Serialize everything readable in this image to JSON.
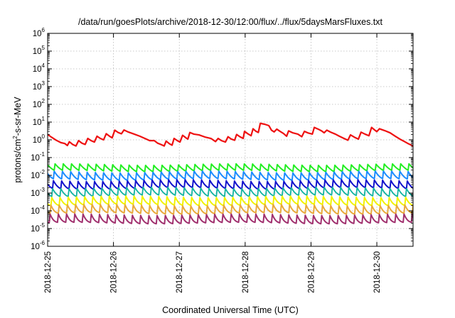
{
  "chart_data": {
    "type": "line",
    "title": "/data/run/goesPlots/archive/2018-12-30/12:00/flux/../flux/5daysMarsFluxes.txt",
    "xlabel": "Coordinated Universal Time (UTC)",
    "ylabel": {
      "base": "protons/cm",
      "sup": "2",
      "rest": "-s-sr-MeV"
    },
    "y_scale": "log",
    "ylim": [
      1e-06,
      1000000.0
    ],
    "xlim": [
      0,
      5.55
    ],
    "grid": true,
    "legend": "none",
    "x_ticks": [
      {
        "x": 0,
        "label": "2018-12-25"
      },
      {
        "x": 1,
        "label": "2018-12-26"
      },
      {
        "x": 2,
        "label": "2018-12-27"
      },
      {
        "x": 3,
        "label": "2018-12-28"
      },
      {
        "x": 4,
        "label": "2018-12-29"
      },
      {
        "x": 5,
        "label": "2018-12-30"
      }
    ],
    "y_ticks": [
      {
        "v": -6,
        "base": "10",
        "exp": "-6"
      },
      {
        "v": -5,
        "base": "10",
        "exp": "-5"
      },
      {
        "v": -4,
        "base": "10",
        "exp": "-4"
      },
      {
        "v": -3,
        "base": "10",
        "exp": "-3"
      },
      {
        "v": -2,
        "base": "10",
        "exp": "-2"
      },
      {
        "v": -1,
        "base": "10",
        "exp": "-1"
      },
      {
        "v": 0,
        "base": "10",
        "exp": "0"
      },
      {
        "v": 1,
        "base": "10",
        "exp": "1"
      },
      {
        "v": 2,
        "base": "10",
        "exp": "2"
      },
      {
        "v": 3,
        "base": "10",
        "exp": "3"
      },
      {
        "v": 4,
        "base": "10",
        "exp": "4"
      },
      {
        "v": 5,
        "base": "10",
        "exp": "5"
      },
      {
        "v": 6,
        "base": "10",
        "exp": "6"
      }
    ],
    "series": [
      {
        "color": "#ee1111",
        "width": 2.2,
        "values": [
          [
            0.0,
            2.0
          ],
          [
            0.06,
            1.4
          ],
          [
            0.13,
            0.95
          ],
          [
            0.2,
            0.7
          ],
          [
            0.26,
            0.62
          ],
          [
            0.3,
            0.48
          ],
          [
            0.33,
            0.78
          ],
          [
            0.38,
            0.55
          ],
          [
            0.43,
            0.45
          ],
          [
            0.47,
            0.9
          ],
          [
            0.52,
            0.65
          ],
          [
            0.57,
            0.55
          ],
          [
            0.61,
            1.2
          ],
          [
            0.66,
            0.9
          ],
          [
            0.71,
            0.75
          ],
          [
            0.75,
            1.6
          ],
          [
            0.8,
            1.2
          ],
          [
            0.85,
            1.0
          ],
          [
            0.89,
            2.2
          ],
          [
            0.94,
            1.6
          ],
          [
            0.98,
            1.3
          ],
          [
            1.02,
            3.5
          ],
          [
            1.07,
            2.6
          ],
          [
            1.12,
            2.2
          ],
          [
            1.16,
            3.6
          ],
          [
            1.22,
            2.8
          ],
          [
            1.3,
            2.2
          ],
          [
            1.4,
            1.6
          ],
          [
            1.5,
            1.1
          ],
          [
            1.55,
            0.9
          ],
          [
            1.62,
            0.9
          ],
          [
            1.67,
            0.65
          ],
          [
            1.72,
            0.55
          ],
          [
            1.77,
            0.45
          ],
          [
            1.8,
            0.85
          ],
          [
            1.85,
            0.6
          ],
          [
            1.89,
            0.5
          ],
          [
            1.92,
            1.2
          ],
          [
            1.97,
            0.9
          ],
          [
            2.01,
            0.75
          ],
          [
            2.05,
            1.8
          ],
          [
            2.1,
            1.3
          ],
          [
            2.13,
            1.1
          ],
          [
            2.16,
            2.6
          ],
          [
            2.22,
            2.1
          ],
          [
            2.3,
            1.9
          ],
          [
            2.4,
            1.4
          ],
          [
            2.48,
            1.2
          ],
          [
            2.55,
            0.8
          ],
          [
            2.59,
            1.2
          ],
          [
            2.64,
            0.9
          ],
          [
            2.7,
            0.75
          ],
          [
            2.74,
            1.5
          ],
          [
            2.79,
            1.1
          ],
          [
            2.84,
            0.95
          ],
          [
            2.87,
            2.0
          ],
          [
            2.92,
            1.5
          ],
          [
            2.97,
            1.2
          ],
          [
            2.99,
            3.0
          ],
          [
            3.04,
            2.2
          ],
          [
            3.09,
            1.7
          ],
          [
            3.12,
            4.2
          ],
          [
            3.16,
            3.1
          ],
          [
            3.2,
            2.6
          ],
          [
            3.23,
            8.5
          ],
          [
            3.3,
            7.5
          ],
          [
            3.36,
            6.3
          ],
          [
            3.4,
            3.5
          ],
          [
            3.44,
            2.8
          ],
          [
            3.48,
            4.0
          ],
          [
            3.53,
            3.0
          ],
          [
            3.58,
            2.3
          ],
          [
            3.63,
            1.6
          ],
          [
            3.66,
            3.2
          ],
          [
            3.72,
            2.5
          ],
          [
            3.8,
            2.1
          ],
          [
            3.86,
            1.5
          ],
          [
            3.9,
            3.0
          ],
          [
            3.96,
            2.4
          ],
          [
            4.02,
            2.1
          ],
          [
            4.05,
            5.0
          ],
          [
            4.11,
            4.0
          ],
          [
            4.16,
            3.2
          ],
          [
            4.2,
            2.5
          ],
          [
            4.24,
            3.5
          ],
          [
            4.3,
            2.7
          ],
          [
            4.37,
            2.1
          ],
          [
            4.43,
            1.6
          ],
          [
            4.5,
            1.2
          ],
          [
            4.56,
            0.95
          ],
          [
            4.6,
            1.9
          ],
          [
            4.66,
            1.4
          ],
          [
            4.72,
            1.1
          ],
          [
            4.76,
            2.7
          ],
          [
            4.82,
            2.1
          ],
          [
            4.88,
            1.7
          ],
          [
            4.92,
            5.0
          ],
          [
            4.97,
            3.5
          ],
          [
            5.0,
            2.9
          ],
          [
            5.04,
            4.2
          ],
          [
            5.12,
            3.3
          ],
          [
            5.2,
            2.5
          ],
          [
            5.28,
            1.6
          ],
          [
            5.35,
            1.1
          ],
          [
            5.42,
            0.8
          ],
          [
            5.48,
            0.6
          ],
          [
            5.55,
            0.45
          ]
        ]
      },
      {
        "color": "#22ee22",
        "width": 2.0,
        "base": 0.022,
        "amp": 0.7,
        "drift": 0.1
      },
      {
        "color": "#1b8cff",
        "width": 2.0,
        "base": 0.0085,
        "amp": 0.95,
        "drift": 0.12
      },
      {
        "color": "#1111cc",
        "width": 2.0,
        "base": 0.0028,
        "amp": 1.05,
        "drift": 0.12
      },
      {
        "color": "#11b3a0",
        "width": 1.8,
        "base": 0.0011,
        "amp": 1.1,
        "drift": 0.1
      },
      {
        "color": "#f2f200",
        "width": 2.0,
        "base": 0.00035,
        "amp": 1.25,
        "drift": 0.1
      },
      {
        "color": "#e8a93c",
        "width": 2.0,
        "base": 0.00012,
        "amp": 1.35,
        "drift": 0.1
      },
      {
        "color": "#a0306e",
        "width": 2.0,
        "base": 3.5e-05,
        "amp": 1.45,
        "drift": 0.1
      }
    ]
  }
}
